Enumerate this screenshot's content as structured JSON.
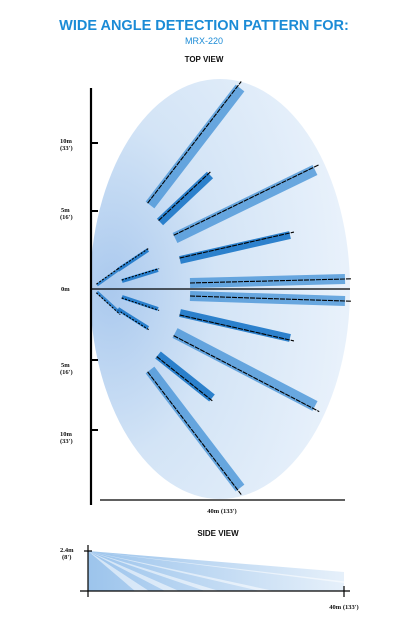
{
  "header": {
    "title": "WIDE ANGLE DETECTION PATTERN FOR:",
    "model": "MRX-220"
  },
  "top_view": {
    "label": "TOP VIEW",
    "distance_marks": [
      {
        "metric": "10m",
        "imperial": "(33')"
      },
      {
        "metric": "5m",
        "imperial": "(16')"
      },
      {
        "metric": "0m",
        "imperial": ""
      },
      {
        "metric": "5m",
        "imperial": "(16')"
      },
      {
        "metric": "10m",
        "imperial": "(33')"
      }
    ],
    "range_label": "40m (133')"
  },
  "side_view": {
    "label": "SIDE VIEW",
    "height_label": "2.4m",
    "height_imperial": "(8')",
    "range_label": "40m (133')"
  },
  "colors": {
    "accent": "#1b8bd6",
    "zone": "#3f8fd6",
    "zone_strong": "#1a76c8",
    "ellipse": "#dce9f7"
  }
}
